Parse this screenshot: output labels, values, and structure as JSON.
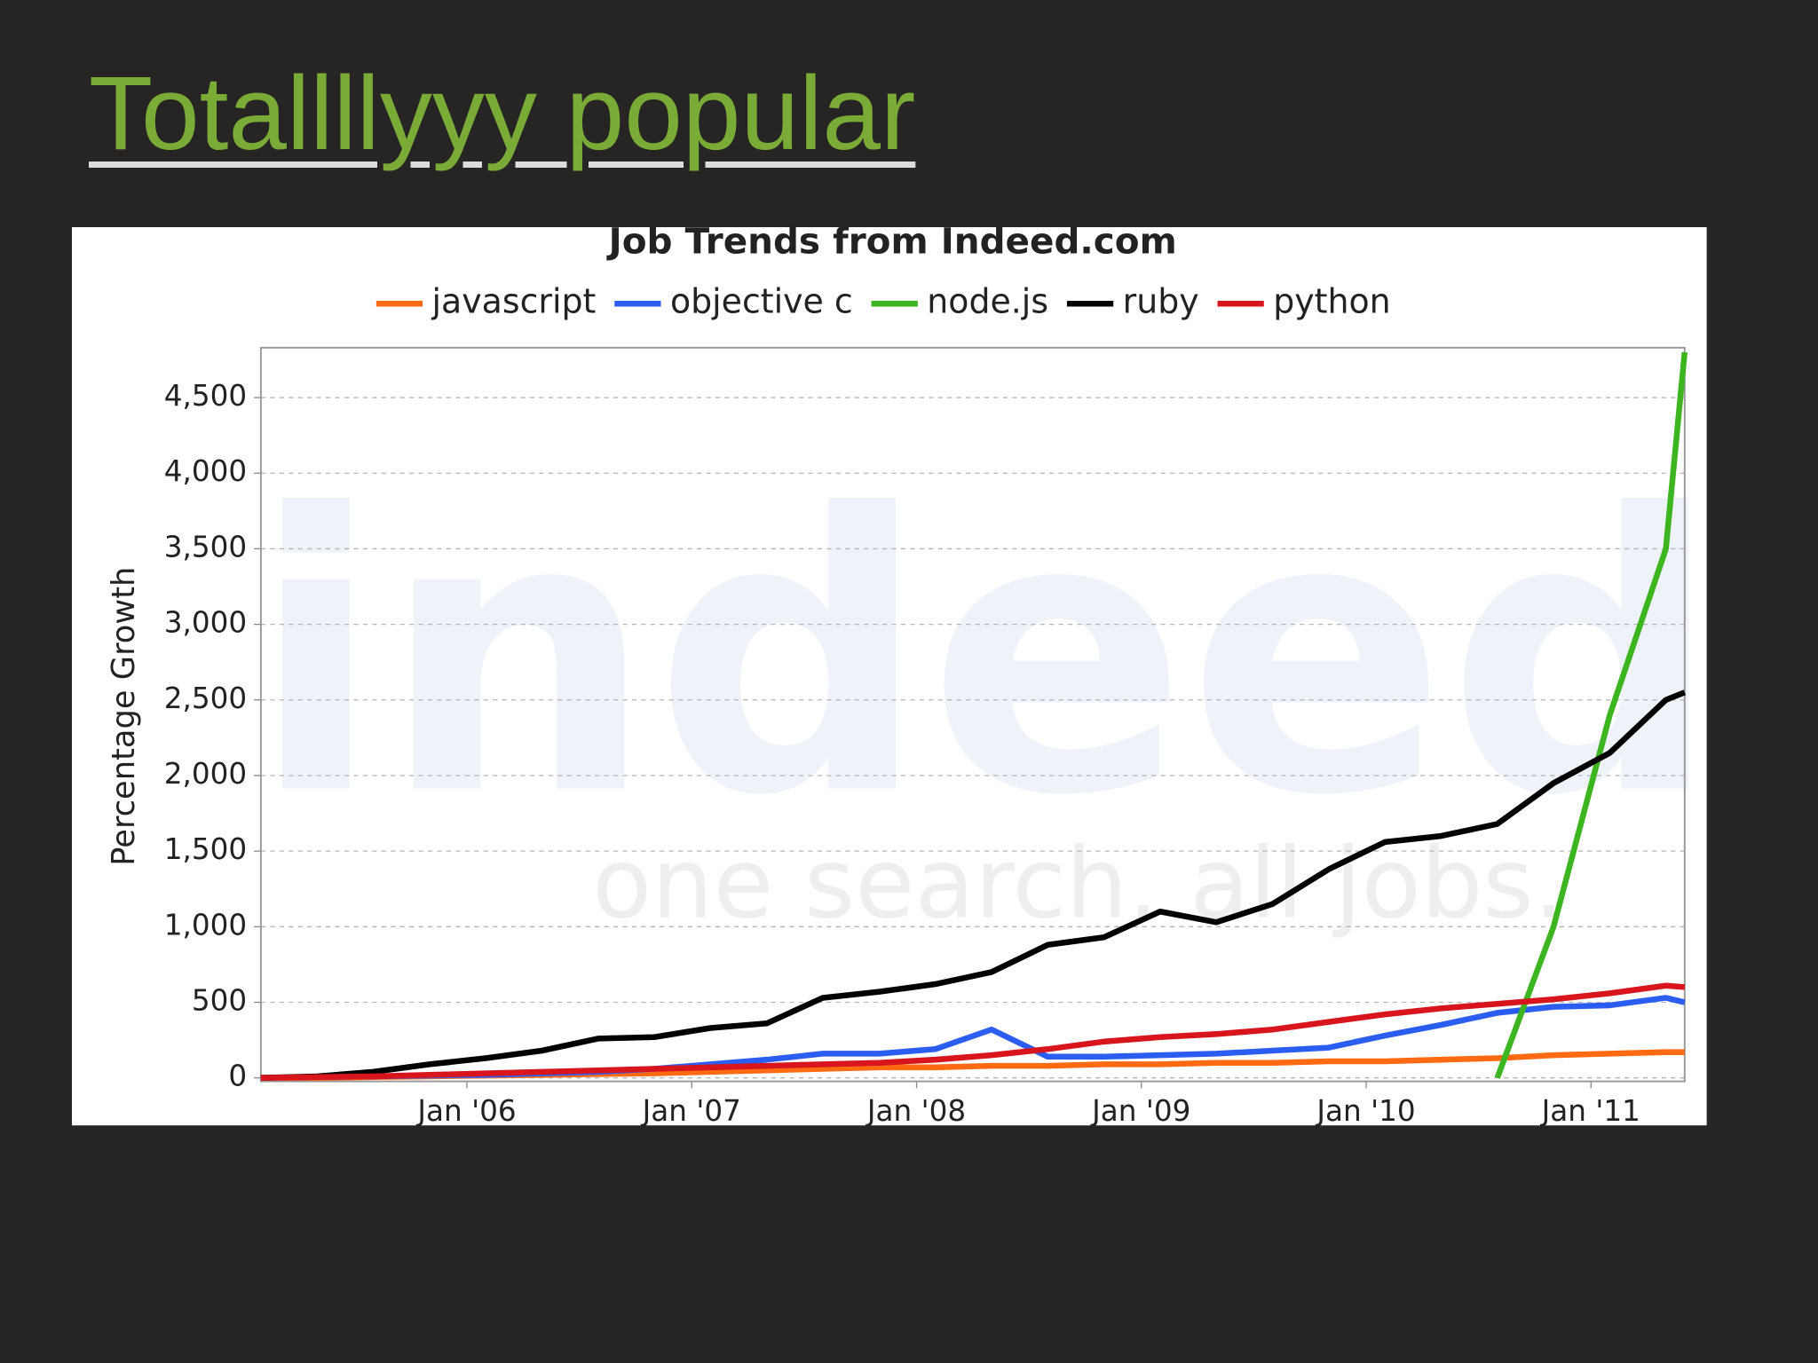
{
  "slide_title": "Totallllyyy popular",
  "chart_data": {
    "type": "line",
    "title": "Job Trends from Indeed.com",
    "watermark": [
      "indeed",
      "one search. all jobs."
    ],
    "y_label": "Percentage Growth",
    "x": [
      "2005-02",
      "2005-05",
      "2005-08",
      "2005-11",
      "2006-02",
      "2006-05",
      "2006-08",
      "2006-11",
      "2007-02",
      "2007-05",
      "2007-08",
      "2007-11",
      "2008-02",
      "2008-05",
      "2008-08",
      "2008-11",
      "2009-02",
      "2009-05",
      "2009-08",
      "2009-11",
      "2010-02",
      "2010-05",
      "2010-08",
      "2010-11",
      "2011-02",
      "2011-05",
      "2011-06"
    ],
    "xlim": [
      "2005-02",
      "2011-06"
    ],
    "xticks": [
      {
        "value": "2006-01",
        "label": "Jan '06"
      },
      {
        "value": "2007-01",
        "label": "Jan '07"
      },
      {
        "value": "2008-01",
        "label": "Jan '08"
      },
      {
        "value": "2009-01",
        "label": "Jan '09"
      },
      {
        "value": "2010-01",
        "label": "Jan '10"
      },
      {
        "value": "2011-01",
        "label": "Jan '11"
      }
    ],
    "ylim": [
      0,
      4830
    ],
    "yticks": [
      0,
      500,
      {
        "value": 1000,
        "label": "1,000"
      },
      {
        "value": 1500,
        "label": "1,500"
      },
      {
        "value": 2000,
        "label": "2,000"
      },
      {
        "value": 2500,
        "label": "2,500"
      },
      {
        "value": 3000,
        "label": "3,000"
      },
      {
        "value": 3500,
        "label": "3,500"
      },
      {
        "value": 4000,
        "label": "4,000"
      },
      {
        "value": 4500,
        "label": "4,500"
      }
    ],
    "grid": true,
    "legend": "top",
    "series": [
      {
        "name": "javascript",
        "color": "#ff6a13",
        "values": [
          0,
          0,
          5,
          10,
          15,
          20,
          25,
          30,
          40,
          50,
          60,
          70,
          70,
          80,
          80,
          90,
          90,
          100,
          100,
          110,
          110,
          120,
          130,
          150,
          160,
          170,
          170
        ]
      },
      {
        "name": "objective c",
        "color": "#2b5ef0",
        "values": [
          0,
          5,
          10,
          15,
          20,
          30,
          40,
          60,
          90,
          120,
          160,
          160,
          190,
          320,
          140,
          140,
          150,
          160,
          180,
          200,
          280,
          350,
          430,
          470,
          480,
          530,
          500
        ]
      },
      {
        "name": "node.js",
        "color": "#3cb521",
        "values": [
          null,
          null,
          null,
          null,
          null,
          null,
          null,
          null,
          null,
          null,
          null,
          null,
          null,
          null,
          null,
          null,
          null,
          null,
          null,
          null,
          null,
          null,
          0,
          1000,
          2400,
          3500,
          4800
        ]
      },
      {
        "name": "ruby",
        "color": "#000000",
        "values": [
          0,
          10,
          40,
          90,
          130,
          180,
          260,
          270,
          330,
          360,
          530,
          570,
          620,
          700,
          880,
          930,
          1100,
          1030,
          1150,
          1380,
          1560,
          1600,
          1680,
          1950,
          2150,
          2500,
          2550
        ]
      },
      {
        "name": "python",
        "color": "#d8141d",
        "values": [
          0,
          5,
          10,
          20,
          30,
          40,
          50,
          60,
          70,
          80,
          90,
          100,
          120,
          150,
          190,
          240,
          270,
          290,
          320,
          370,
          420,
          460,
          490,
          520,
          560,
          610,
          600
        ]
      }
    ]
  }
}
